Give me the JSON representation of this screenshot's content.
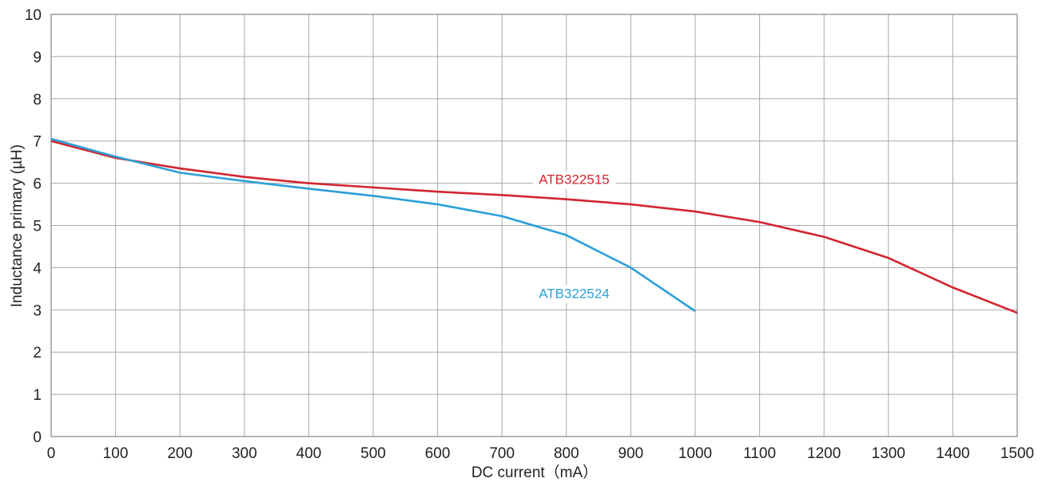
{
  "chart_data": {
    "type": "line",
    "title": "",
    "xlabel": "DC current（mA）",
    "ylabel": "Inductance primary (µH)",
    "xlim": [
      0,
      1500
    ],
    "ylim": [
      0,
      10
    ],
    "xticks": [
      0,
      100,
      200,
      300,
      400,
      500,
      600,
      700,
      800,
      900,
      1000,
      1100,
      1200,
      1300,
      1400,
      1500
    ],
    "yticks": [
      0,
      1,
      2,
      3,
      4,
      5,
      6,
      7,
      8,
      9,
      10
    ],
    "grid": true,
    "series": [
      {
        "name": "ATB322515",
        "color": "#d12630",
        "x": [
          0,
          100,
          200,
          300,
          400,
          500,
          600,
          700,
          800,
          900,
          1000,
          1100,
          1200,
          1300,
          1400,
          1500
        ],
        "y": [
          7.0,
          6.6,
          6.35,
          6.15,
          6.0,
          5.9,
          5.8,
          5.72,
          5.62,
          5.5,
          5.33,
          5.08,
          4.73,
          4.23,
          3.53,
          2.93
        ]
      },
      {
        "name": "ATB322524",
        "color": "#2a9fd8",
        "x": [
          0,
          100,
          200,
          300,
          400,
          500,
          600,
          700,
          800,
          900,
          1000
        ],
        "y": [
          7.05,
          6.63,
          6.25,
          6.05,
          5.87,
          5.7,
          5.5,
          5.22,
          4.77,
          4.0,
          2.97
        ]
      }
    ]
  }
}
